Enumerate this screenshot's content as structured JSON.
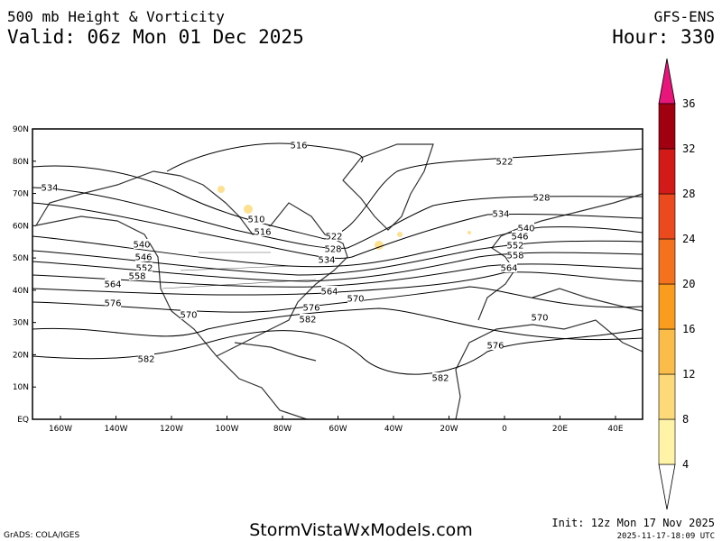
{
  "header": {
    "title": "500 mb Height & Vorticity",
    "valid": "Valid: 06z Mon 01 Dec 2025",
    "model": "GFS-ENS",
    "hour": "Hour: 330"
  },
  "map": {
    "lat_labels": [
      "90N",
      "80N",
      "70N",
      "60N",
      "50N",
      "40N",
      "30N",
      "20N",
      "10N",
      "EQ"
    ],
    "lon_labels": [
      "160W",
      "140W",
      "120W",
      "100W",
      "80W",
      "60W",
      "40W",
      "20W",
      "0",
      "20E",
      "40E"
    ],
    "contour_labels": [
      "516",
      "522",
      "534",
      "510",
      "516",
      "522",
      "528",
      "534",
      "528",
      "534",
      "540",
      "546",
      "552",
      "558",
      "564",
      "540",
      "546",
      "552",
      "558",
      "564",
      "576",
      "570",
      "582",
      "564",
      "570",
      "576",
      "582",
      "576",
      "570",
      "582"
    ]
  },
  "colorbar": {
    "ticks": [
      4,
      8,
      12,
      16,
      20,
      24,
      28,
      32,
      36
    ],
    "colors": [
      "#fff3a8",
      "#fdd97a",
      "#fbbd4a",
      "#fa9c1e",
      "#f4721e",
      "#ea4a1e",
      "#d21a18",
      "#a00010"
    ],
    "top_color": "#e8157a"
  },
  "footer": {
    "grads": "GrADS: COLA/IGES",
    "site": "StormVistaWxModels.com",
    "init": "Init: 12z Mon 17 Nov 2025",
    "stamp": "2025-11-17-18:09 UTC"
  }
}
